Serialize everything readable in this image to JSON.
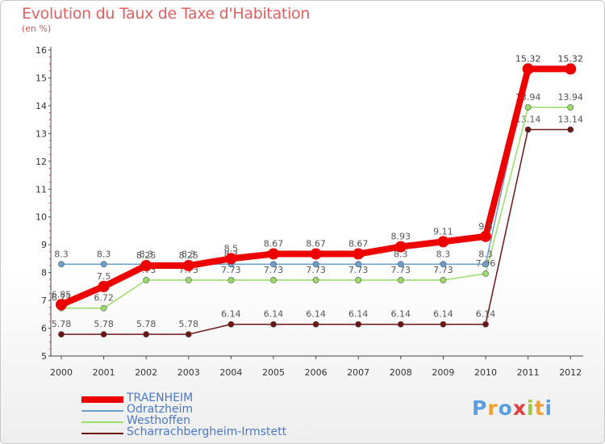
{
  "chart_data": {
    "type": "line",
    "title": "Evolution du Taux de Taxe d'Habitation",
    "subtitle": "(en %)",
    "ylim": [
      5,
      16
    ],
    "yticks": [
      "5",
      "6",
      "7",
      "8",
      "9",
      "10",
      "11",
      "12",
      "13",
      "14",
      "15",
      "16"
    ],
    "categories": [
      "2000",
      "2001",
      "2002",
      "2003",
      "2004",
      "2005",
      "2006",
      "2007",
      "2008",
      "2009",
      "2010",
      "2011",
      "2012"
    ],
    "series": [
      {
        "name": "Scharrachbergheim-Irmstett",
        "color": "#6e1414",
        "values": [
          5.78,
          5.78,
          5.78,
          5.78,
          6.14,
          6.14,
          6.14,
          6.14,
          6.14,
          6.14,
          6.14,
          13.14,
          13.14
        ],
        "labels": [
          "5.78",
          "5.78",
          "5.78",
          "5.78",
          "6.14",
          "6.14",
          "6.14",
          "6.14",
          "6.14",
          "6.14",
          "6.14",
          "13.14",
          "13.14"
        ]
      },
      {
        "name": "Westhoffen",
        "color": "#99dd66",
        "values": [
          6.72,
          6.72,
          7.73,
          7.73,
          7.73,
          7.73,
          7.73,
          7.73,
          7.73,
          7.73,
          7.96,
          13.94,
          13.94
        ],
        "labels": [
          "6.72",
          "6.72",
          "7.73",
          "7.73",
          "7.73",
          "7.73",
          "7.73",
          "7.73",
          "7.73",
          "7.73",
          "7.96",
          "13.94",
          "13.94"
        ]
      },
      {
        "name": "Odratzheim",
        "color": "#6a9fd0",
        "values": [
          8.3,
          8.3,
          8.3,
          8.3,
          8.3,
          8.3,
          8.3,
          8.3,
          8.3,
          8.3,
          8.3,
          15.32,
          15.32
        ],
        "labels": [
          "8.3",
          "8.3",
          "8.3",
          "8.3",
          "8.3",
          "8.3",
          "8.3",
          "8.3",
          "8.3",
          "8.3",
          "8.3",
          "15.32",
          "15.32"
        ]
      },
      {
        "name": "TRAENHEIM",
        "color": "#ee0000",
        "values": [
          6.85,
          7.5,
          8.25,
          8.25,
          8.5,
          8.67,
          8.67,
          8.67,
          8.93,
          9.11,
          9.3,
          15.32,
          15.32
        ],
        "labels": [
          "6.85",
          "7.5",
          "8.25",
          "8.25",
          "8.5",
          "8.67",
          "8.67",
          "8.67",
          "8.93",
          "9.11",
          "9.3",
          "15.32",
          "15.32"
        ]
      }
    ],
    "legend_order": [
      "TRAENHEIM",
      "Odratzheim",
      "Westhoffen",
      "Scharrachbergheim-Irmstett"
    ],
    "legend_position": "bottom-left",
    "grid": false
  },
  "logo": {
    "letters": [
      "P",
      "r",
      "o",
      "x",
      "i",
      "t",
      "i"
    ],
    "colors": [
      "#5aa0e0",
      "#f0a030",
      "#5aa0e0",
      "#e04040",
      "#a0c840",
      "#f0a030",
      "#5aa0e0"
    ]
  }
}
